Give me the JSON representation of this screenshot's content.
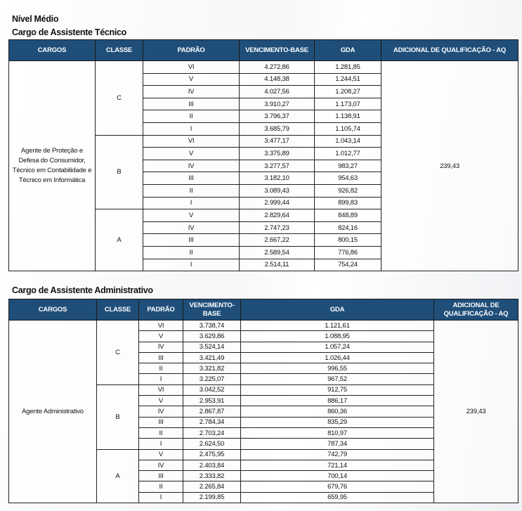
{
  "page_title": "Nível Médio",
  "tables": [
    {
      "title": "Cargo de Assistente Técnico",
      "headers": [
        "CARGOS",
        "CLASSE",
        "PADRÃO",
        "VENCIMENTO-BASE",
        "GDA",
        "ADICIONAL DE QUALIFICAÇÃO - AQ"
      ],
      "cargo": "Agente de Proteção e Defesa do Consumidor, Técnico em Contabilidade e Técnico em Informática",
      "aq": "239,43",
      "classes": [
        {
          "classe": "C",
          "rows": [
            {
              "padrao": "VI",
              "vencimento": "4.272,86",
              "gda": "1.281,85"
            },
            {
              "padrao": "V",
              "vencimento": "4.148,38",
              "gda": "1.244,51"
            },
            {
              "padrao": "IV",
              "vencimento": "4.027,56",
              "gda": "1.208,27"
            },
            {
              "padrao": "III",
              "vencimento": "3.910,27",
              "gda": "1.173,07"
            },
            {
              "padrao": "II",
              "vencimento": "3.796,37",
              "gda": "1.138,91"
            },
            {
              "padrao": "I",
              "vencimento": "3.685,79",
              "gda": "1.105,74"
            }
          ]
        },
        {
          "classe": "B",
          "rows": [
            {
              "padrao": "VI",
              "vencimento": "3.477,17",
              "gda": "1.043,14"
            },
            {
              "padrao": "V",
              "vencimento": "3.375,89",
              "gda": "1.012,77"
            },
            {
              "padrao": "IV",
              "vencimento": "3.277,57",
              "gda": "983,27"
            },
            {
              "padrao": "III",
              "vencimento": "3.182,10",
              "gda": "954,63"
            },
            {
              "padrao": "II",
              "vencimento": "3.089,43",
              "gda": "926,82"
            },
            {
              "padrao": "I",
              "vencimento": "2.999,44",
              "gda": "899,83"
            }
          ]
        },
        {
          "classe": "A",
          "rows": [
            {
              "padrao": "V",
              "vencimento": "2.829,64",
              "gda": "848,89"
            },
            {
              "padrao": "IV",
              "vencimento": "2.747,23",
              "gda": "824,16"
            },
            {
              "padrao": "III",
              "vencimento": "2.667,22",
              "gda": "800,15"
            },
            {
              "padrao": "II",
              "vencimento": "2.589,54",
              "gda": "776,86"
            },
            {
              "padrao": "I",
              "vencimento": "2.514,11",
              "gda": "754,24"
            }
          ]
        }
      ]
    },
    {
      "title": "Cargo de Assistente Administrativo",
      "headers": [
        "CARGOS",
        "CLASSE",
        "PADRÃO",
        "VENCIMENTO-BASE",
        "GDA",
        "ADICIONAL DE QUALIFICAÇÃO - AQ"
      ],
      "cargo": "Agente Administrativo",
      "aq": "239,43",
      "classes": [
        {
          "classe": "C",
          "rows": [
            {
              "padrao": "VI",
              "vencimento": "3.738,74",
              "gda": "1.121,61"
            },
            {
              "padrao": "V",
              "vencimento": "3.629,86",
              "gda": "1.088,95"
            },
            {
              "padrao": "IV",
              "vencimento": "3.524,14",
              "gda": "1.057,24"
            },
            {
              "padrao": "III",
              "vencimento": "3.421,49",
              "gda": "1.026,44"
            },
            {
              "padrao": "II",
              "vencimento": "3.321,82",
              "gda": "996,55"
            },
            {
              "padrao": "I",
              "vencimento": "3.225,07",
              "gda": "967,52"
            }
          ]
        },
        {
          "classe": "B",
          "rows": [
            {
              "padrao": "VI",
              "vencimento": "3.042,52",
              "gda": "912,75"
            },
            {
              "padrao": "V",
              "vencimento": "2.953,91",
              "gda": "886,17"
            },
            {
              "padrao": "IV",
              "vencimento": "2.867,87",
              "gda": "860,36"
            },
            {
              "padrao": "III",
              "vencimento": "2.784,34",
              "gda": "835,29"
            },
            {
              "padrao": "II",
              "vencimento": "2.703,24",
              "gda": "810,97"
            },
            {
              "padrao": "I",
              "vencimento": "2.624,50",
              "gda": "787,34"
            }
          ]
        },
        {
          "classe": "A",
          "rows": [
            {
              "padrao": "V",
              "vencimento": "2.475,95",
              "gda": "742,79"
            },
            {
              "padrao": "IV",
              "vencimento": "2.403,84",
              "gda": "721,14"
            },
            {
              "padrao": "III",
              "vencimento": "2.333,82",
              "gda": "700,14"
            },
            {
              "padrao": "II",
              "vencimento": "2.265,84",
              "gda": "679,76"
            },
            {
              "padrao": "I",
              "vencimento": "2.199,85",
              "gda": "659,95"
            }
          ]
        }
      ]
    }
  ]
}
